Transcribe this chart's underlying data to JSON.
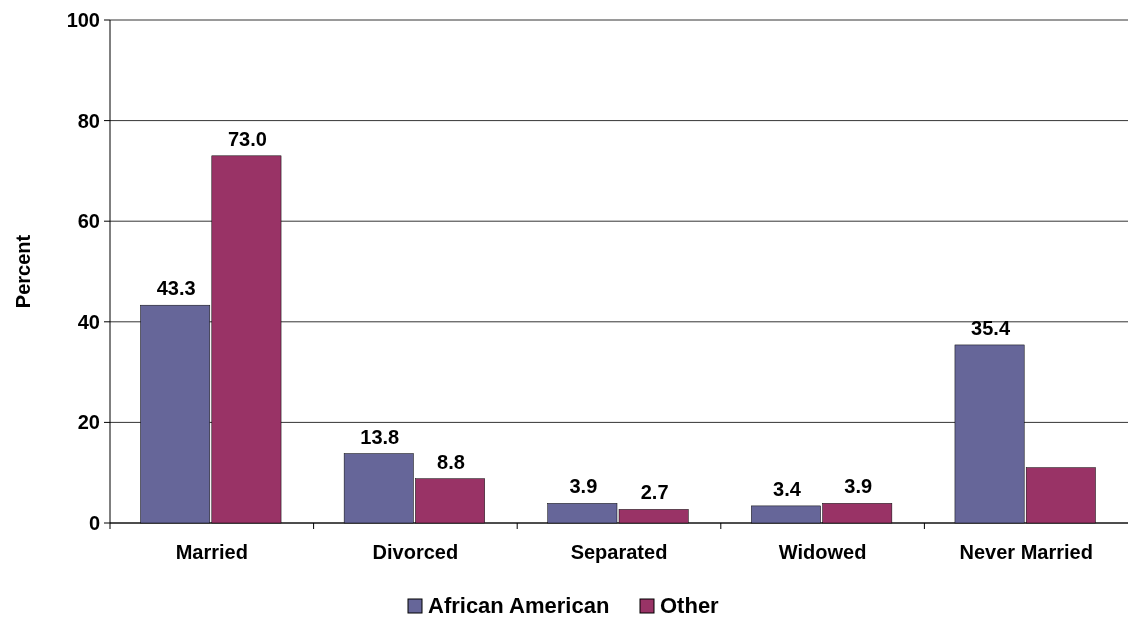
{
  "chart_data": {
    "type": "bar",
    "ylabel": "Percent",
    "categories": [
      "Married",
      "Divorced",
      "Separated",
      "Widowed",
      "Never Married"
    ],
    "series": [
      {
        "name": "African American",
        "color": "#666699",
        "values": [
          43.3,
          13.8,
          3.9,
          3.4,
          35.4
        ],
        "value_labels": [
          "43.3",
          "13.8",
          "3.9",
          "3.4",
          "35.4"
        ]
      },
      {
        "name": "Other",
        "color": "#993366",
        "values": [
          73.0,
          8.8,
          2.7,
          3.9,
          11
        ],
        "value_labels": [
          "73.0",
          "8.8",
          "2.7",
          "3.9",
          null
        ]
      }
    ],
    "ylim": [
      0,
      100
    ],
    "yticks": [
      0,
      20,
      40,
      60,
      80,
      100
    ],
    "grid": "y",
    "legend": "bottom"
  }
}
